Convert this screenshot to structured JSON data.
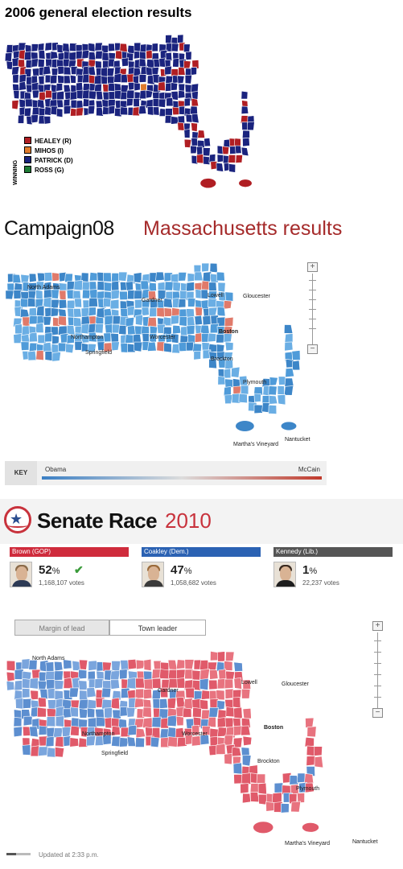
{
  "panel_2006": {
    "title": "2006 general election results",
    "legend_heading": "WINNING",
    "legend": [
      {
        "label": "HEALEY (R)",
        "color": "#b01e23"
      },
      {
        "label": "MIHOS (I)",
        "color": "#e07b2c"
      },
      {
        "label": "PATRICK (D)",
        "color": "#1a237e"
      },
      {
        "label": "ROSS (G)",
        "color": "#1e7b34"
      }
    ]
  },
  "panel_2008": {
    "brand_bold": "Campaign",
    "brand_num": "08",
    "subtitle": "Massachusetts results",
    "towns": [
      "North Adams",
      "Gardner",
      "Lowell",
      "Gloucester",
      "Northampton",
      "Worcester",
      "Boston",
      "Springfield",
      "Brockton",
      "Plymouth",
      "Martha's Vineyard",
      "Nantucket"
    ],
    "zoom_in": "+",
    "zoom_out": "−",
    "key": {
      "label": "KEY",
      "left": "Obama",
      "right": "McCain"
    },
    "colors": {
      "obama": "#4f9bd9",
      "mccain": "#e07a6a"
    }
  },
  "panel_2010": {
    "title": "Senate Race",
    "year": "2010",
    "candidates": [
      {
        "name": "Brown (GOP)",
        "pct": "52",
        "votes": "1,168,107 votes",
        "color": "#cf2b3c",
        "winner": true
      },
      {
        "name": "Coakley (Dem.)",
        "pct": "47",
        "votes": "1,058,682 votes",
        "color": "#2b62b3",
        "winner": false
      },
      {
        "name": "Kennedy (Lib.)",
        "pct": "1",
        "votes": "22,237 votes",
        "color": "#555555",
        "winner": false
      }
    ],
    "tabs": [
      "Margin of lead",
      "Town leader"
    ],
    "active_tab": "Town leader",
    "towns": [
      "North Adams",
      "Gardner",
      "Lowell",
      "Gloucester",
      "Northampton",
      "Worcester",
      "Boston",
      "Springfield",
      "Brockton",
      "Plymouth",
      "Martha's Vineyard",
      "Nantucket"
    ],
    "zoom_in": "+",
    "zoom_out": "−",
    "updated": "Updated at 2:33 p.m.",
    "colors": {
      "brown": "#e05a6a",
      "coakley": "#5d8fd0"
    }
  }
}
